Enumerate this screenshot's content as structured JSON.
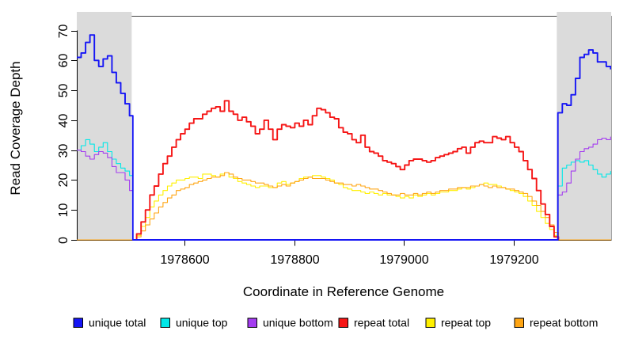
{
  "chart_data": {
    "type": "line",
    "title": "",
    "xlabel": "Coordinate in Reference Genome",
    "ylabel": "Read Coverage Depth",
    "xlim": [
      1978404,
      1979377
    ],
    "ylim": [
      0,
      74.9
    ],
    "grid": false,
    "legend_position": "bottom",
    "xticks": [
      {
        "value": 1978600,
        "label": "1978600"
      },
      {
        "value": 1978800,
        "label": "1978800"
      },
      {
        "value": 1979000,
        "label": "1979000"
      },
      {
        "value": 1979200,
        "label": "1979200"
      }
    ],
    "yticks": [
      {
        "value": 0,
        "label": "0"
      },
      {
        "value": 10,
        "label": "10"
      },
      {
        "value": 20,
        "label": "20"
      },
      {
        "value": 30,
        "label": "30"
      },
      {
        "value": 40,
        "label": "40"
      },
      {
        "value": 50,
        "label": "50"
      },
      {
        "value": 60,
        "label": "60"
      },
      {
        "value": 70,
        "label": "70"
      }
    ],
    "shaded_regions": [
      {
        "from": 1978404,
        "to": 1978504,
        "color": "#DBDBDB"
      },
      {
        "from": 1979278,
        "to": 1979377,
        "color": "#DBDBDB"
      }
    ],
    "series": [
      {
        "name": "unique total",
        "color": "#1515F5",
        "width": 1.9,
        "segments": [
          {
            "x_start": 1978404,
            "x_step": 8,
            "values": [
              61,
              62.5,
              66,
              68.5,
              60,
              58,
              60.5,
              61.5,
              56,
              52.5,
              49,
              45.5,
              41.5
            ]
          },
          {
            "points": [
              [
                1978506,
                0
              ],
              [
                1979278,
                0
              ]
            ]
          },
          {
            "x_start": 1979280,
            "x_step": 8,
            "values": [
              42.5,
              45.5,
              45,
              48.5,
              54,
              61,
              62,
              63.5,
              62.5,
              59.5,
              59.5,
              58,
              57
            ]
          }
        ]
      },
      {
        "name": "unique top",
        "color": "#00E8E8",
        "width": 1.1,
        "segments": [
          {
            "x_start": 1978404,
            "x_step": 8,
            "values": [
              30,
              31.5,
              33.5,
              32,
              29.5,
              31,
              32.5,
              29.5,
              27,
              25.5,
              24,
              23,
              21.5
            ]
          },
          {
            "points": [
              [
                1978506,
                0
              ],
              [
                1979278,
                0
              ]
            ]
          },
          {
            "x_start": 1979280,
            "x_step": 8,
            "values": [
              18,
              24,
              25,
              26,
              26.5,
              26,
              26.5,
              25,
              23.5,
              22,
              21,
              22,
              23
            ]
          }
        ]
      },
      {
        "name": "unique bottom",
        "color": "#A43CF0",
        "width": 1.1,
        "segments": [
          {
            "x_start": 1978404,
            "x_step": 8,
            "values": [
              30,
              29.5,
              28,
              27,
              28.5,
              29.5,
              29,
              27.5,
              24.5,
              22.5,
              22.5,
              20,
              16.5
            ]
          },
          {
            "points": [
              [
                1978506,
                0
              ],
              [
                1979278,
                0
              ]
            ]
          },
          {
            "x_start": 1979280,
            "x_step": 8,
            "values": [
              15,
              16,
              19,
              23,
              27,
              29.5,
              30.5,
              31,
              32,
              33.5,
              34,
              33.5,
              34.5
            ]
          }
        ]
      },
      {
        "name": "repeat total",
        "color": "#F51515",
        "width": 1.9,
        "segments": [
          {
            "x_start": 1978505,
            "x_step": 8,
            "values": [
              0,
              2,
              6,
              10,
              15,
              18,
              22,
              25.5,
              28,
              31,
              33.5,
              35.5,
              37,
              39,
              40.5,
              40.5,
              42,
              43,
              44,
              44.5,
              43,
              46.5,
              43,
              42,
              40,
              41,
              39.5,
              38,
              35.5,
              37,
              40,
              37,
              33.5,
              37,
              38.5,
              38,
              37.5,
              39,
              38,
              40,
              38.5,
              41.5,
              44,
              43.5,
              42.5,
              41,
              40.5,
              37.5,
              36,
              35.5,
              33.5,
              32.5,
              35,
              31,
              29.5,
              29,
              28,
              26.5,
              26,
              25.5,
              24.5,
              23.5,
              25,
              26.5,
              27,
              27,
              26.5,
              26,
              26.5,
              27.5,
              28,
              28.5,
              29,
              29.5,
              30.5,
              31,
              29,
              31,
              32.5,
              33,
              32.5,
              32.5,
              34.5,
              34,
              33.5,
              34.5,
              32.5,
              31,
              29.5,
              26.5,
              23.5,
              20.5,
              16.5,
              12,
              8.5,
              4.5,
              1,
              0
            ]
          }
        ]
      },
      {
        "name": "repeat top",
        "color": "#FFF000",
        "width": 1.1,
        "segments": [
          {
            "x_start": 1978505,
            "x_step": 8,
            "values": [
              0,
              1.5,
              4.5,
              7.5,
              11,
              13,
              15,
              16.5,
              18,
              19,
              20,
              20,
              20.5,
              21,
              21,
              20.5,
              22,
              22,
              21.5,
              21,
              22,
              22.5,
              21,
              20.5,
              19.5,
              19,
              18.5,
              18,
              17.5,
              18,
              18,
              17.5,
              17.5,
              19,
              19.5,
              18.5,
              19,
              19.5,
              20.5,
              21,
              21,
              21.5,
              21.5,
              21,
              20.5,
              20,
              19,
              18.5,
              17.5,
              17,
              16.5,
              16.5,
              16,
              15.5,
              16,
              15.5,
              15,
              15.5,
              15,
              15,
              14.5,
              14,
              14.5,
              14,
              15,
              14.5,
              15,
              15.5,
              15,
              15.5,
              16,
              16,
              16.5,
              16.5,
              17,
              17.5,
              17,
              17.5,
              18,
              18.5,
              19,
              18.5,
              18.5,
              18,
              17.5,
              17,
              16.5,
              16,
              15.5,
              14.5,
              13,
              11.5,
              9.5,
              7.5,
              5.5,
              3.5,
              1.5,
              0
            ]
          }
        ]
      },
      {
        "name": "repeat bottom",
        "color": "#FFA513",
        "width": 1.1,
        "segments": [
          {
            "points": [
              [
                1978404,
                0
              ]
            ]
          },
          {
            "x_start": 1978505,
            "x_step": 8,
            "values": [
              0,
              1,
              3,
              5,
              7,
              9,
              11,
              12.5,
              14,
              15,
              16.5,
              17,
              17.5,
              18.5,
              19,
              19.5,
              20,
              20.5,
              21,
              21,
              21.5,
              22.5,
              22,
              21,
              20.5,
              20,
              20,
              19.5,
              19,
              19,
              18.5,
              18,
              17.5,
              18,
              18.5,
              18,
              19,
              19.5,
              20,
              20.5,
              21,
              20.5,
              20.5,
              20.5,
              20,
              19.5,
              19,
              19,
              18.5,
              18.5,
              18,
              18.5,
              18,
              17.5,
              17,
              17,
              16.5,
              16,
              15.5,
              15,
              15,
              15.5,
              15,
              15,
              15.5,
              15,
              15.5,
              16,
              15.5,
              16,
              16.5,
              16.5,
              17,
              17,
              17.5,
              17.5,
              17.5,
              18,
              18,
              18.5,
              18,
              17.5,
              18,
              17.5,
              17.5,
              17,
              17,
              16.5,
              16,
              15.5,
              14.5,
              13,
              11.5,
              9.5,
              7.5,
              5,
              2.5,
              0
            ]
          },
          {
            "points": [
              [
                1979377,
                0
              ]
            ]
          }
        ]
      }
    ],
    "legend": {
      "entries": [
        {
          "label": "unique total",
          "color": "#1515F5"
        },
        {
          "label": "unique top",
          "color": "#00E8E8"
        },
        {
          "label": "unique bottom",
          "color": "#A43CF0"
        },
        {
          "label": "repeat total",
          "color": "#F51515"
        },
        {
          "label": "repeat top",
          "color": "#FFF000"
        },
        {
          "label": "repeat bottom",
          "color": "#FFA513"
        }
      ]
    }
  }
}
